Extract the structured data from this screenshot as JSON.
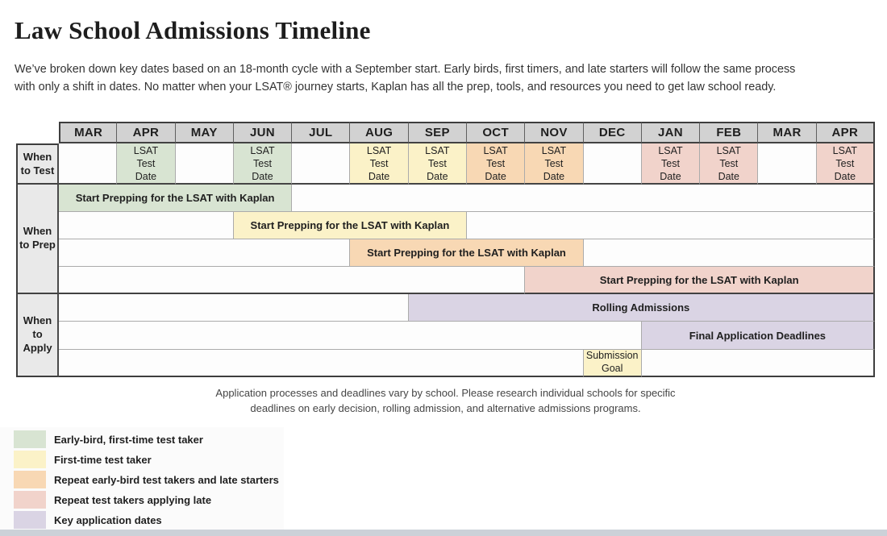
{
  "header": {
    "title": "Law School Admissions Timeline",
    "intro": "We’ve broken down key dates based on an 18-month cycle with a September start. Early birds, first timers, and late starters will follow the same process\nwith only a shift in dates. No matter when your LSAT® journey starts, Kaplan has all the prep, tools, and resources you need to get law school ready."
  },
  "labels": {
    "row_test": "When\nto Test",
    "row_prep": "When\nto Prep",
    "row_apply": "When\nto\nApply",
    "test_date": "LSAT\nTest\nDate",
    "prep_bar": "Start Prepping for the LSAT with Kaplan",
    "submission_goal": "Submission\nGoal"
  },
  "footnote": "Application processes and deadlines vary by school. Please research individual schools for specific\ndeadlines on early decision, rolling admission, and alternative admissions programs.",
  "colors": {
    "green": "#d8e4d2",
    "yellow": "#fbf2c8",
    "orange": "#f8d8b4",
    "pink": "#f1d3cb",
    "purple": "#dad4e4",
    "month_header_gray": "#d2d2d2",
    "row_label_gray": "#e9e9e9",
    "bottom_strip_gray": "#ccd1d8"
  },
  "chart_data": {
    "type": "table",
    "subtype": "gantt_timeline",
    "title": "Law School Admissions Timeline",
    "columns": [
      "MAR",
      "APR",
      "MAY",
      "JUN",
      "JUL",
      "AUG",
      "SEP",
      "OCT",
      "NOV",
      "DEC",
      "JAN",
      "FEB",
      "MAR",
      "APR"
    ],
    "rows": [
      {
        "label": "When to Test",
        "events": [
          {
            "month": "APR",
            "month_index": 1,
            "text": "LSAT Test Date",
            "category": "early_bird_first_time",
            "color": "#d8e4d2"
          },
          {
            "month": "JUN",
            "month_index": 3,
            "text": "LSAT Test Date",
            "category": "early_bird_first_time",
            "color": "#d8e4d2"
          },
          {
            "month": "AUG",
            "month_index": 5,
            "text": "LSAT Test Date",
            "category": "first_time",
            "color": "#fbf2c8"
          },
          {
            "month": "SEP",
            "month_index": 6,
            "text": "LSAT Test Date",
            "category": "first_time",
            "color": "#fbf2c8"
          },
          {
            "month": "OCT",
            "month_index": 7,
            "text": "LSAT Test Date",
            "category": "repeat_early_bird_late_starters",
            "color": "#f8d8b4"
          },
          {
            "month": "NOV",
            "month_index": 8,
            "text": "LSAT Test Date",
            "category": "repeat_early_bird_late_starters",
            "color": "#f8d8b4"
          },
          {
            "month": "JAN",
            "month_index": 10,
            "text": "LSAT Test Date",
            "category": "repeat_applying_late",
            "color": "#f1d3cb"
          },
          {
            "month": "FEB",
            "month_index": 11,
            "text": "LSAT Test Date",
            "category": "repeat_applying_late",
            "color": "#f1d3cb"
          },
          {
            "month": "APR",
            "month_index": 13,
            "text": "LSAT Test Date",
            "category": "repeat_applying_late",
            "color": "#f1d3cb"
          }
        ]
      },
      {
        "label": "When to Prep",
        "bars": [
          {
            "text": "Start Prepping for the LSAT with Kaplan",
            "start_month": "MAR",
            "end_month": "JUN",
            "start_index": 0,
            "end_index": 3,
            "category": "early_bird_first_time",
            "color": "#d8e4d2"
          },
          {
            "text": "Start Prepping for the LSAT with Kaplan",
            "start_month": "JUN",
            "end_month": "SEP",
            "start_index": 3,
            "end_index": 6,
            "category": "first_time",
            "color": "#fbf2c8"
          },
          {
            "text": "Start Prepping for the LSAT with Kaplan",
            "start_month": "AUG",
            "end_month": "NOV",
            "start_index": 5,
            "end_index": 8,
            "category": "repeat_early_bird_late_starters",
            "color": "#f8d8b4"
          },
          {
            "text": "Start Prepping for the LSAT with Kaplan",
            "start_month": "NOV",
            "end_month": "APR",
            "start_index": 8,
            "end_index": 13,
            "category": "repeat_applying_late",
            "color": "#f1d3cb"
          }
        ]
      },
      {
        "label": "When to Apply",
        "bars": [
          {
            "text": "Rolling Admissions",
            "start_month": "SEP",
            "end_month": "APR",
            "start_index": 6,
            "end_index": 13,
            "category": "key_application_dates",
            "color": "#dad4e4"
          },
          {
            "text": "Final Application Deadlines",
            "start_month": "JAN",
            "end_month": "APR",
            "start_index": 10,
            "end_index": 13,
            "category": "key_application_dates",
            "color": "#dad4e4"
          },
          {
            "text": "Submission Goal",
            "start_month": "DEC",
            "end_month": "DEC",
            "start_index": 9,
            "end_index": 9,
            "category": "first_time",
            "color": "#fbf2c8"
          }
        ]
      }
    ],
    "legend": [
      {
        "label": "Early-bird, first-time test taker",
        "color": "#d8e4d2"
      },
      {
        "label": "First-time test taker",
        "color": "#fbf2c8"
      },
      {
        "label": "Repeat early-bird test takers and late starters",
        "color": "#f8d8b4"
      },
      {
        "label": "Repeat test takers applying late",
        "color": "#f1d3cb"
      },
      {
        "label": "Key application dates",
        "color": "#dad4e4"
      }
    ]
  }
}
